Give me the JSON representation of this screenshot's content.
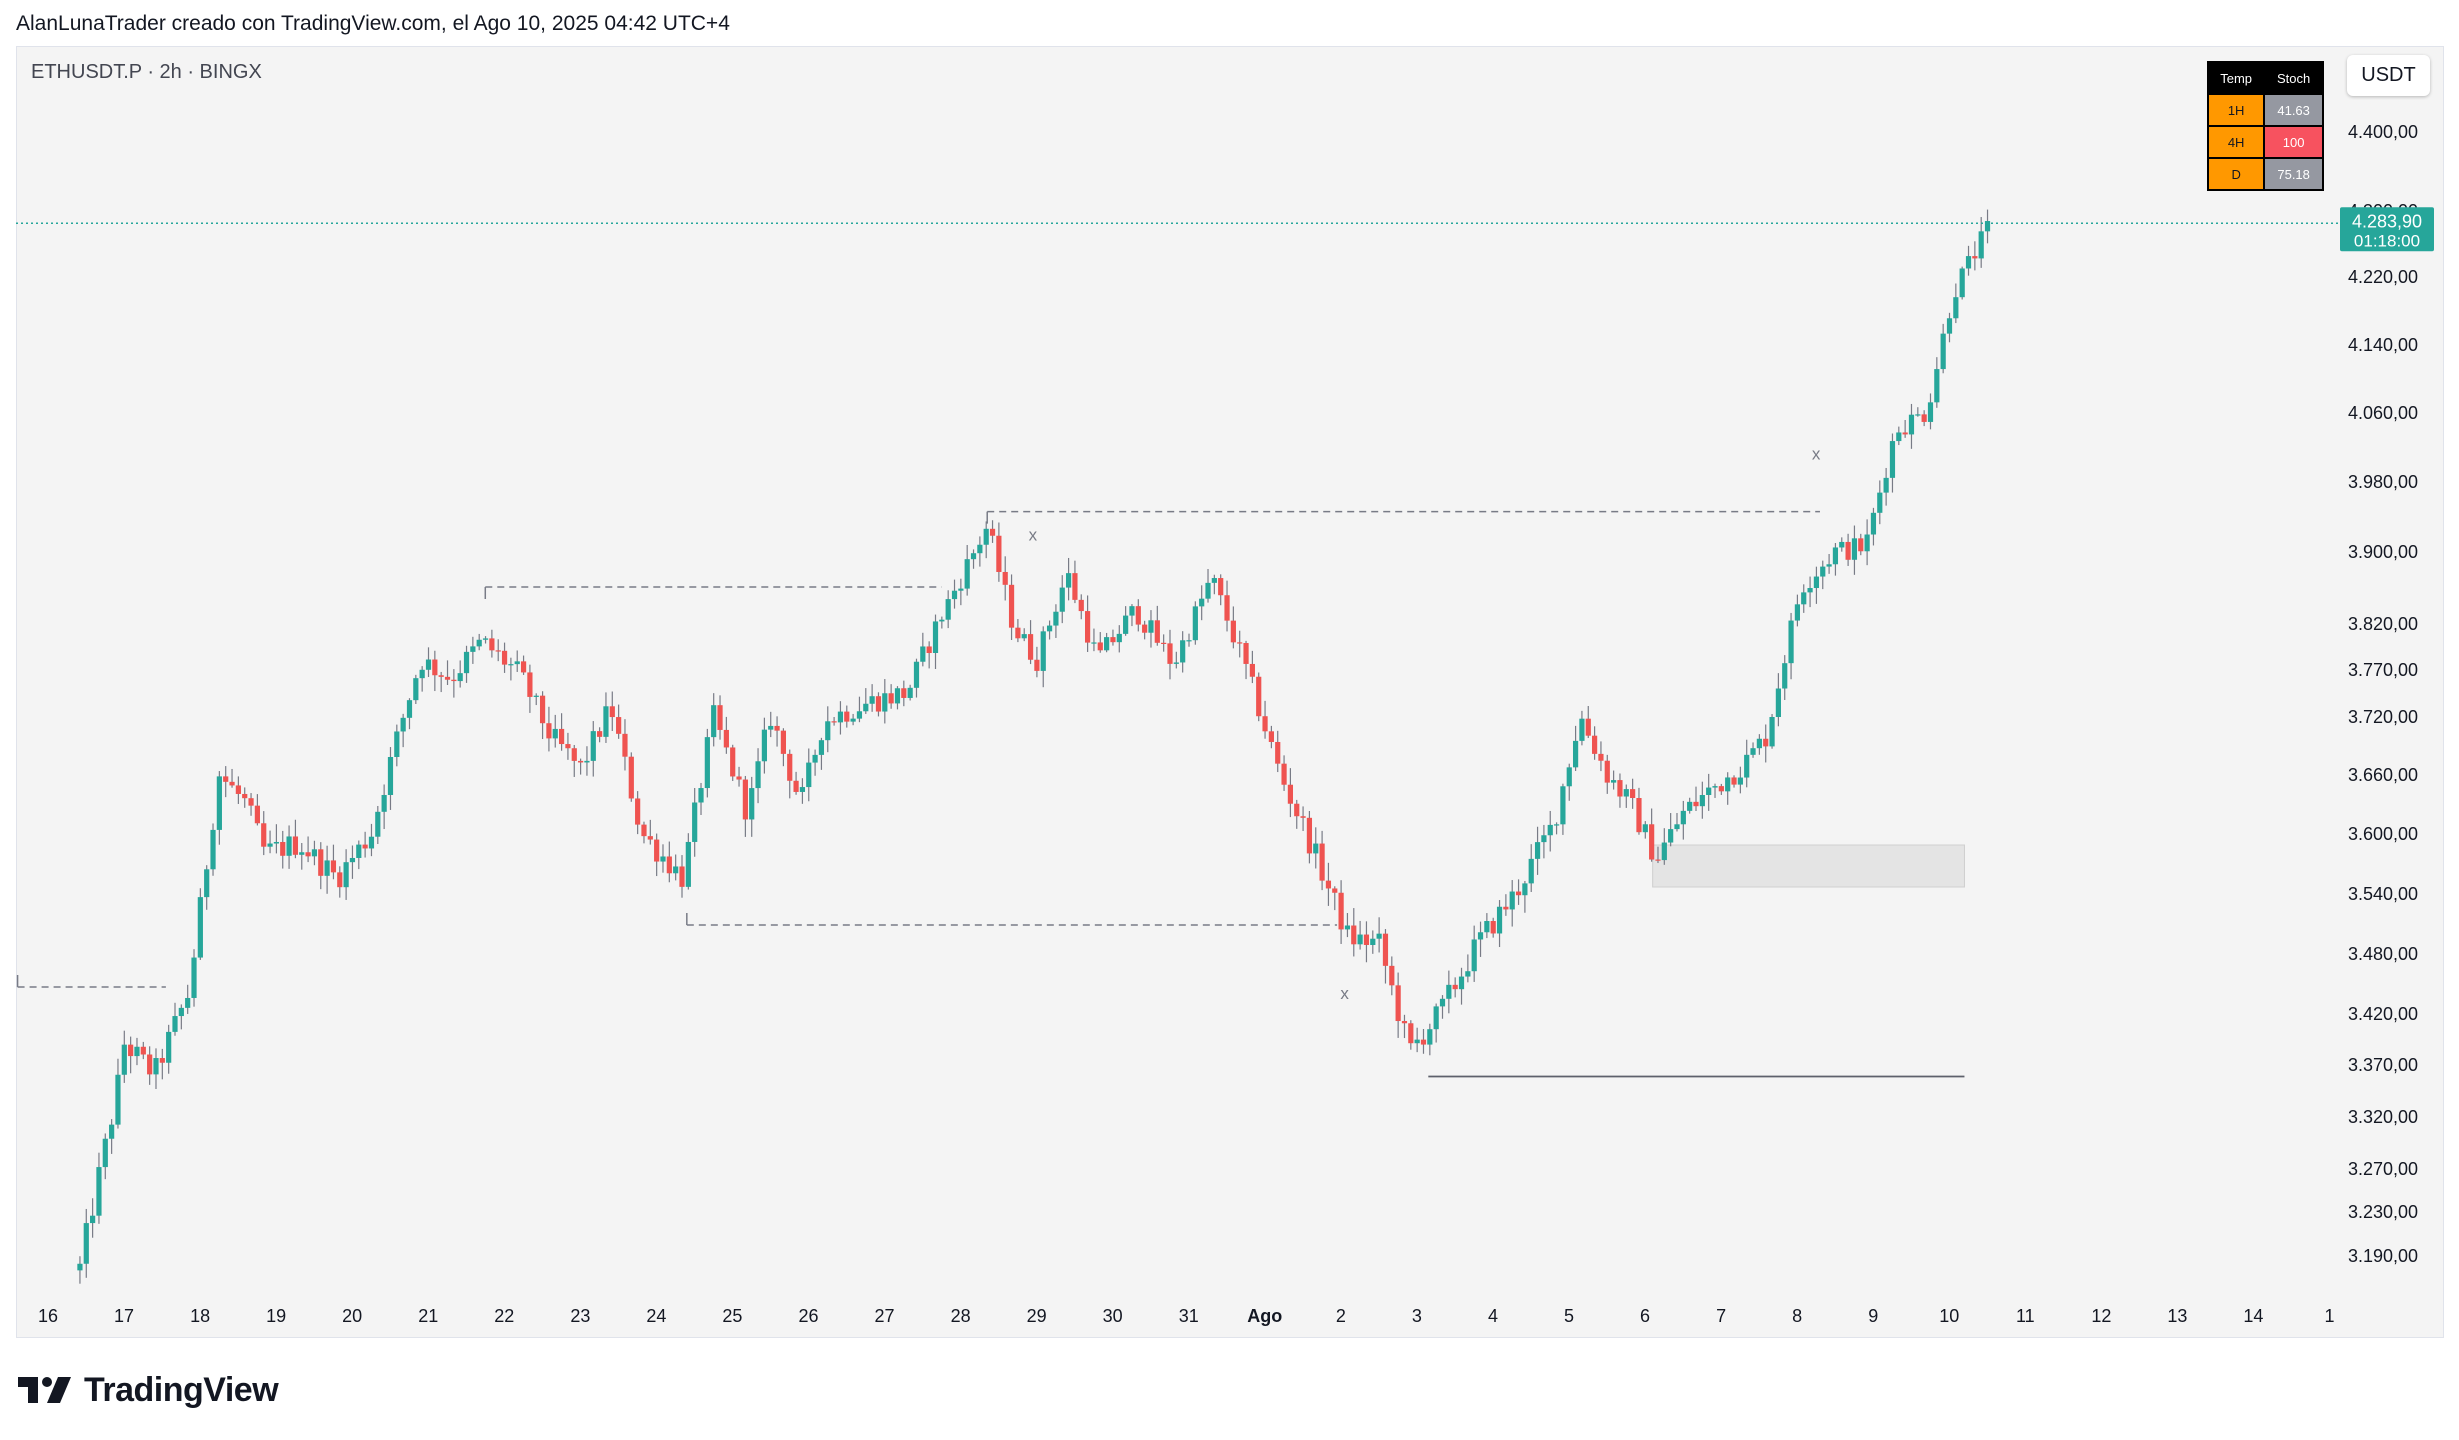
{
  "header": {
    "caption": "AlanLunaTrader creado con TradingView.com, el Ago 10, 2025 04:42 UTC+4"
  },
  "chart_header": {
    "symbol_line": "ETHUSDT.P · 2h · BINGX",
    "currency_button": "USDT"
  },
  "stoch_table": {
    "headers": [
      "Temp",
      "Stoch"
    ],
    "rows": [
      {
        "tf": "1H",
        "value": "41.63",
        "state": "neutral"
      },
      {
        "tf": "4H",
        "value": "100",
        "state": "overbought"
      },
      {
        "tf": "D",
        "value": "75.18",
        "state": "neutral"
      }
    ]
  },
  "footer": {
    "brand": "TradingView"
  },
  "colors": {
    "up": "#26a69a",
    "down": "#ef5350",
    "wick": "#787b86",
    "price_line": "#26a69a",
    "tf_cell": "#ff9800",
    "neutral_cell": "#9598a1",
    "overbought_cell": "#f7525f"
  },
  "chart_data": {
    "type": "candlestick",
    "interval": "2h",
    "y_axis": {
      "ticks": [
        {
          "value": 4400,
          "label": "4.400,00"
        },
        {
          "value": 4300,
          "label": "4.300,00"
        },
        {
          "value": 4220,
          "label": "4.220,00"
        },
        {
          "value": 4140,
          "label": "4.140,00"
        },
        {
          "value": 4060,
          "label": "4.060,00"
        },
        {
          "value": 3980,
          "label": "3.980,00"
        },
        {
          "value": 3900,
          "label": "3.900,00"
        },
        {
          "value": 3820,
          "label": "3.820,00"
        },
        {
          "value": 3770,
          "label": "3.770,00"
        },
        {
          "value": 3720,
          "label": "3.720,00"
        },
        {
          "value": 3660,
          "label": "3.660,00"
        },
        {
          "value": 3600,
          "label": "3.600,00"
        },
        {
          "value": 3540,
          "label": "3.540,00"
        },
        {
          "value": 3480,
          "label": "3.480,00"
        },
        {
          "value": 3420,
          "label": "3.420,00"
        },
        {
          "value": 3370,
          "label": "3.370,00"
        },
        {
          "value": 3320,
          "label": "3.320,00"
        },
        {
          "value": 3270,
          "label": "3.270,00"
        },
        {
          "value": 3230,
          "label": "3.230,00"
        },
        {
          "value": 3190,
          "label": "3.190,00"
        }
      ]
    },
    "x_axis": {
      "ticks": [
        {
          "day": 0,
          "label": "16",
          "bold": false
        },
        {
          "day": 1,
          "label": "17",
          "bold": false
        },
        {
          "day": 2,
          "label": "18",
          "bold": false
        },
        {
          "day": 3,
          "label": "19",
          "bold": false
        },
        {
          "day": 4,
          "label": "20",
          "bold": false
        },
        {
          "day": 5,
          "label": "21",
          "bold": false
        },
        {
          "day": 6,
          "label": "22",
          "bold": false
        },
        {
          "day": 7,
          "label": "23",
          "bold": false
        },
        {
          "day": 8,
          "label": "24",
          "bold": false
        },
        {
          "day": 9,
          "label": "25",
          "bold": false
        },
        {
          "day": 10,
          "label": "26",
          "bold": false
        },
        {
          "day": 11,
          "label": "27",
          "bold": false
        },
        {
          "day": 12,
          "label": "28",
          "bold": false
        },
        {
          "day": 13,
          "label": "29",
          "bold": false
        },
        {
          "day": 14,
          "label": "30",
          "bold": false
        },
        {
          "day": 15,
          "label": "31",
          "bold": false
        },
        {
          "day": 16,
          "label": "Ago",
          "bold": true
        },
        {
          "day": 17,
          "label": "2",
          "bold": false
        },
        {
          "day": 18,
          "label": "3",
          "bold": false
        },
        {
          "day": 19,
          "label": "4",
          "bold": false
        },
        {
          "day": 20,
          "label": "5",
          "bold": false
        },
        {
          "day": 21,
          "label": "6",
          "bold": false
        },
        {
          "day": 22,
          "label": "7",
          "bold": false
        },
        {
          "day": 23,
          "label": "8",
          "bold": false
        },
        {
          "day": 24,
          "label": "9",
          "bold": false
        },
        {
          "day": 25,
          "label": "10",
          "bold": false
        },
        {
          "day": 26,
          "label": "11",
          "bold": false
        },
        {
          "day": 27,
          "label": "12",
          "bold": false
        },
        {
          "day": 28,
          "label": "13",
          "bold": false
        },
        {
          "day": 29,
          "label": "14",
          "bold": false
        },
        {
          "day": 30,
          "label": "1",
          "bold": false
        }
      ]
    },
    "last_price": {
      "value": 4283.9,
      "label": "4.283,90",
      "countdown": "01:18:00"
    },
    "anchors": [
      {
        "day": 0.42,
        "price": 3178
      },
      {
        "day": 0.9,
        "price": 3340
      },
      {
        "day": 1.0,
        "price": 3390
      },
      {
        "day": 1.4,
        "price": 3360
      },
      {
        "day": 1.85,
        "price": 3440
      },
      {
        "day": 2.25,
        "price": 3660
      },
      {
        "day": 2.6,
        "price": 3630
      },
      {
        "day": 2.85,
        "price": 3580
      },
      {
        "day": 3.3,
        "price": 3590
      },
      {
        "day": 3.8,
        "price": 3555
      },
      {
        "day": 4.25,
        "price": 3600
      },
      {
        "day": 4.6,
        "price": 3700
      },
      {
        "day": 4.9,
        "price": 3780
      },
      {
        "day": 5.3,
        "price": 3760
      },
      {
        "day": 5.7,
        "price": 3800
      },
      {
        "day": 6.2,
        "price": 3765
      },
      {
        "day": 6.6,
        "price": 3700
      },
      {
        "day": 7.0,
        "price": 3665
      },
      {
        "day": 7.4,
        "price": 3730
      },
      {
        "day": 7.8,
        "price": 3600
      },
      {
        "day": 8.35,
        "price": 3555
      },
      {
        "day": 8.75,
        "price": 3720
      },
      {
        "day": 9.2,
        "price": 3620
      },
      {
        "day": 9.5,
        "price": 3720
      },
      {
        "day": 9.9,
        "price": 3630
      },
      {
        "day": 10.2,
        "price": 3715
      },
      {
        "day": 10.8,
        "price": 3735
      },
      {
        "day": 11.3,
        "price": 3745
      },
      {
        "day": 11.7,
        "price": 3820
      },
      {
        "day": 12.35,
        "price": 3928
      },
      {
        "day": 12.7,
        "price": 3815
      },
      {
        "day": 13.0,
        "price": 3780
      },
      {
        "day": 13.4,
        "price": 3875
      },
      {
        "day": 13.8,
        "price": 3780
      },
      {
        "day": 14.3,
        "price": 3835
      },
      {
        "day": 14.8,
        "price": 3775
      },
      {
        "day": 15.3,
        "price": 3870
      },
      {
        "day": 15.75,
        "price": 3770
      },
      {
        "day": 16.2,
        "price": 3660
      },
      {
        "day": 16.6,
        "price": 3590
      },
      {
        "day": 17.1,
        "price": 3495
      },
      {
        "day": 17.5,
        "price": 3490
      },
      {
        "day": 17.9,
        "price": 3382
      },
      {
        "day": 18.3,
        "price": 3420
      },
      {
        "day": 18.8,
        "price": 3490
      },
      {
        "day": 19.3,
        "price": 3540
      },
      {
        "day": 19.8,
        "price": 3610
      },
      {
        "day": 20.15,
        "price": 3720
      },
      {
        "day": 20.5,
        "price": 3660
      },
      {
        "day": 20.8,
        "price": 3630
      },
      {
        "day": 21.15,
        "price": 3575
      },
      {
        "day": 21.5,
        "price": 3620
      },
      {
        "day": 21.8,
        "price": 3640
      },
      {
        "day": 22.3,
        "price": 3670
      },
      {
        "day": 22.6,
        "price": 3700
      },
      {
        "day": 23.05,
        "price": 3860
      },
      {
        "day": 23.5,
        "price": 3900
      },
      {
        "day": 23.9,
        "price": 3905
      },
      {
        "day": 24.3,
        "price": 4040
      },
      {
        "day": 24.7,
        "price": 4060
      },
      {
        "day": 25.05,
        "price": 4200
      },
      {
        "day": 25.35,
        "price": 4250
      },
      {
        "day": 25.55,
        "price": 4284
      }
    ],
    "annotations": {
      "dashed_levels": [
        {
          "day_from": -0.4,
          "day_to": 1.55,
          "price": 3446
        },
        {
          "day_from": 5.75,
          "day_to": 11.75,
          "price": 3860
        },
        {
          "day_from": 12.35,
          "day_to": 23.3,
          "price": 3945
        },
        {
          "day_from": 8.4,
          "day_to": 16.95,
          "price": 3508
        }
      ],
      "solid_levels": [
        {
          "day_from": 18.15,
          "day_to": 25.2,
          "price": 3358
        }
      ],
      "zones": [
        {
          "day_from": 21.1,
          "day_to": 25.2,
          "price_top": 3588,
          "price_bottom": 3546
        }
      ],
      "markers": [
        {
          "day": 12.95,
          "price": 3912,
          "text": "x"
        },
        {
          "day": 17.05,
          "price": 3434,
          "text": "x"
        },
        {
          "day": 23.25,
          "price": 4005,
          "text": "x"
        }
      ]
    }
  }
}
